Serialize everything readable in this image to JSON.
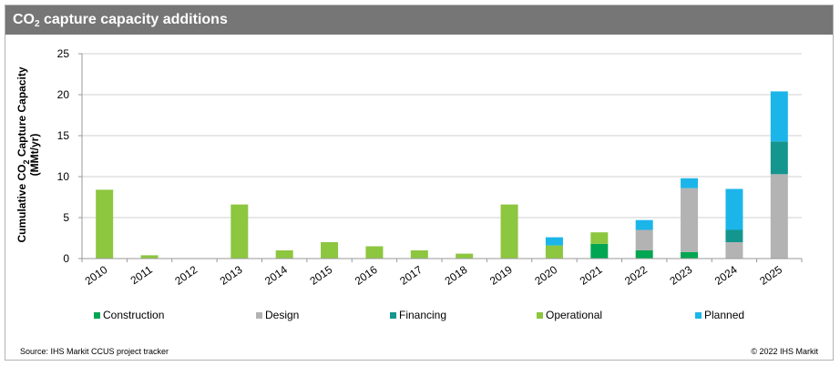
{
  "header": {
    "title_prefix": "CO",
    "title_sub": "2",
    "title_suffix": " capture capacity additions"
  },
  "footer": {
    "source": "Source: IHS Markit CCUS project tracker",
    "copyright": "© 2022 IHS Markit"
  },
  "colors": {
    "Construction": "#00a651",
    "Design": "#b3b3b3",
    "Financing": "#14968e",
    "Operational": "#8dc63f",
    "Planned": "#1cb5ea",
    "grid": "#d0d0d0",
    "axis": "#999999",
    "title_bar": "#767676"
  },
  "chart_data": {
    "type": "bar",
    "stacked": true,
    "title": "CO2 capture capacity additions",
    "ylabel_line1_prefix": "Cumulative  CO",
    "ylabel_line1_sub": "2",
    "ylabel_line1_suffix": " Capture Capacity",
    "ylabel_line2": "(MMt/yr)",
    "ylim": [
      0,
      25
    ],
    "yticks": [
      0,
      5,
      10,
      15,
      20,
      25
    ],
    "grid": true,
    "legend_position": "bottom",
    "categories": [
      "2010",
      "2011",
      "2012",
      "2013",
      "2014",
      "2015",
      "2016",
      "2017",
      "2018",
      "2019",
      "2020",
      "2021",
      "2022",
      "2023",
      "2024",
      "2025"
    ],
    "series": [
      {
        "name": "Construction",
        "values": [
          0,
          0,
          0,
          0,
          0,
          0,
          0,
          0,
          0,
          0,
          0,
          1.8,
          1.0,
          0.8,
          0,
          0
        ]
      },
      {
        "name": "Design",
        "values": [
          0,
          0,
          0,
          0,
          0,
          0,
          0,
          0,
          0,
          0,
          0,
          0,
          2.5,
          7.8,
          2.0,
          10.3
        ]
      },
      {
        "name": "Financing",
        "values": [
          0,
          0,
          0,
          0,
          0,
          0,
          0,
          0,
          0,
          0,
          0,
          0,
          0,
          0,
          1.5,
          4.0
        ]
      },
      {
        "name": "Operational",
        "values": [
          8.4,
          0.4,
          0,
          6.6,
          1.0,
          2.0,
          1.5,
          1.0,
          0.6,
          6.6,
          1.6,
          1.4,
          0,
          0,
          0,
          0
        ]
      },
      {
        "name": "Planned",
        "values": [
          0,
          0,
          0,
          0,
          0,
          0,
          0,
          0,
          0,
          0,
          1.0,
          0,
          1.2,
          1.2,
          5.0,
          6.1
        ]
      }
    ]
  }
}
